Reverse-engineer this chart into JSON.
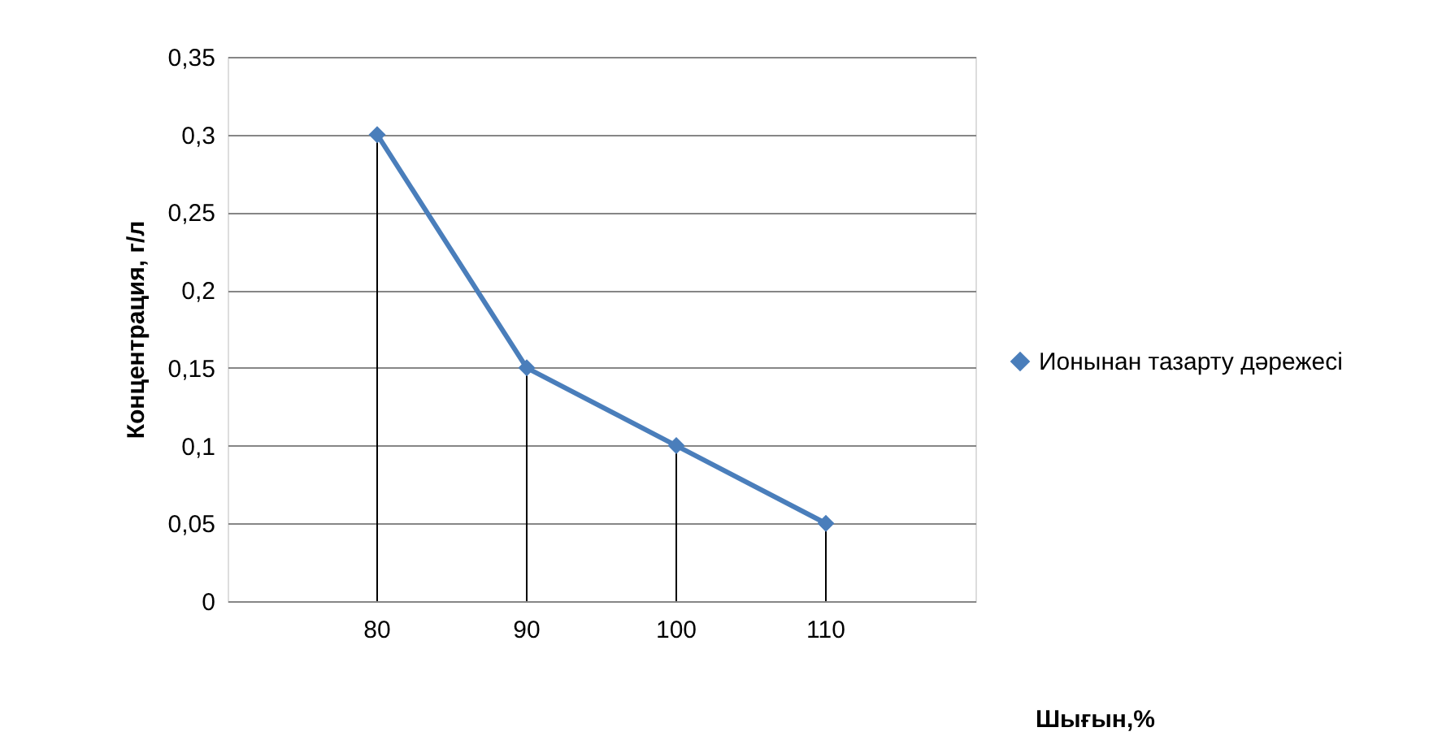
{
  "chart_data": {
    "type": "line",
    "xlabel": "Шығын,%",
    "ylabel": "Концентрация, г/л",
    "categories": [
      "80",
      "90",
      "100",
      "110"
    ],
    "series": [
      {
        "name": "Ионынан тазарту дәрежесі",
        "color": "#4a7ebb",
        "values": [
          0.3,
          0.15,
          0.1,
          0.05
        ],
        "errors": [
          [
            0,
            0.3
          ],
          [
            0,
            0.15
          ],
          [
            0,
            0.1
          ],
          [
            0,
            0.05
          ]
        ]
      }
    ],
    "ylim": [
      0,
      0.35
    ],
    "yticks": [
      0,
      {
        "value": 0.05,
        "label": "0,05"
      },
      {
        "value": 0.1,
        "label": "0,1"
      },
      {
        "value": 0.15,
        "label": "0,15"
      },
      {
        "value": 0.2,
        "label": "0,2"
      },
      {
        "value": 0.25,
        "label": "0,25"
      },
      {
        "value": 0.3,
        "label": "0,3"
      },
      {
        "value": 0.35,
        "label": "0,35"
      }
    ],
    "grid": "y",
    "legend": "right",
    "marker": "diamond",
    "line_style": "solid"
  }
}
